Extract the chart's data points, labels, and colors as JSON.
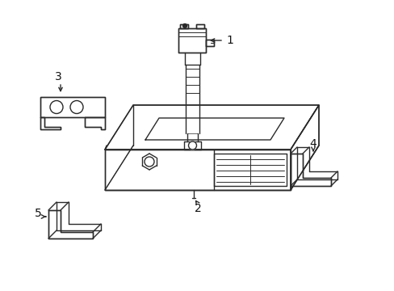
{
  "bg_color": "#ffffff",
  "line_color": "#2a2a2a",
  "line_width": 1.0,
  "fig_width": 4.89,
  "fig_height": 3.6,
  "dpi": 100
}
